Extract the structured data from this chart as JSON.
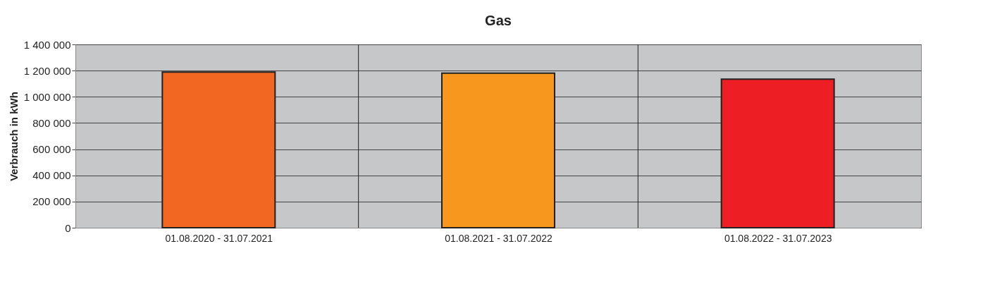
{
  "chart_data": {
    "type": "bar",
    "title": "Gas",
    "ylabel": "Verbrauch in kWh",
    "categories": [
      "01.08.2020 - 31.07.2021",
      "01.08.2021 - 31.07.2022",
      "01.08.2022 - 31.07.2023"
    ],
    "values": [
      1189000,
      1180000,
      1135000
    ],
    "colors": [
      "#f26722",
      "#f7971e",
      "#ed1f24"
    ],
    "ylim": [
      0,
      1400000
    ],
    "yticks": [
      0,
      {
        "value": 200000,
        "label": "200 000"
      },
      {
        "value": 400000,
        "label": "400 000"
      },
      {
        "value": 600000,
        "label": "600 000"
      },
      {
        "value": 800000,
        "label": "800 000"
      },
      {
        "value": 1000000,
        "label": "1 000 000"
      },
      {
        "value": 1200000,
        "label": "1 200 000"
      },
      {
        "value": 1400000,
        "label": "1 400 000"
      }
    ],
    "grid": true
  }
}
